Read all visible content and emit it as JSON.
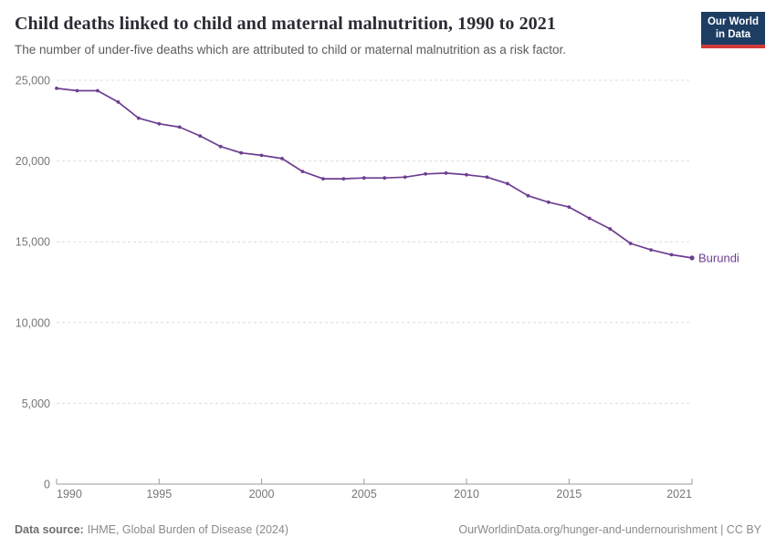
{
  "header": {
    "logo": {
      "line1": "Our World",
      "line2": "in Data",
      "bg_color": "#1d3d63",
      "bar_color": "#d13a3a"
    }
  },
  "chart_data": {
    "type": "line",
    "title": "Child deaths linked to child and maternal malnutrition, 1990 to 2021",
    "subtitle": "The number of under-five deaths which are attributed to child or maternal malnutrition as a risk factor.",
    "x": [
      1990,
      1991,
      1992,
      1993,
      1994,
      1995,
      1996,
      1997,
      1998,
      1999,
      2000,
      2001,
      2002,
      2003,
      2004,
      2005,
      2006,
      2007,
      2008,
      2009,
      2010,
      2011,
      2012,
      2013,
      2014,
      2015,
      2016,
      2017,
      2018,
      2019,
      2020,
      2021
    ],
    "series": [
      {
        "name": "Burundi",
        "color": "#6d3e91",
        "values": [
          24500,
          24350,
          24350,
          23650,
          22650,
          22300,
          22100,
          21550,
          20900,
          20500,
          20350,
          20150,
          19350,
          18900,
          18900,
          18950,
          18950,
          19000,
          19200,
          19250,
          19150,
          19000,
          18600,
          17850,
          17450,
          17150,
          16450,
          15800,
          14900,
          14500,
          14200,
          14000
        ]
      }
    ],
    "end_label": "Burundi",
    "x_ticks": [
      1990,
      1995,
      2000,
      2005,
      2010,
      2015,
      2021
    ],
    "y_ticks": [
      0,
      5000,
      10000,
      15000,
      20000,
      25000
    ],
    "xlim": [
      1990,
      2021
    ],
    "ylim": [
      0,
      25000
    ],
    "grid": "horizontal-dashed",
    "grid_color": "#dcdcdc",
    "axis_color": "#9a9a9a",
    "tick_label_color": "#767676",
    "legend_position": "end-of-line"
  },
  "footer": {
    "source_label": "Data source:",
    "source_value": "IHME, Global Burden of Disease (2024)",
    "link": "OurWorldinData.org/hunger-and-undernourishment | CC BY"
  }
}
